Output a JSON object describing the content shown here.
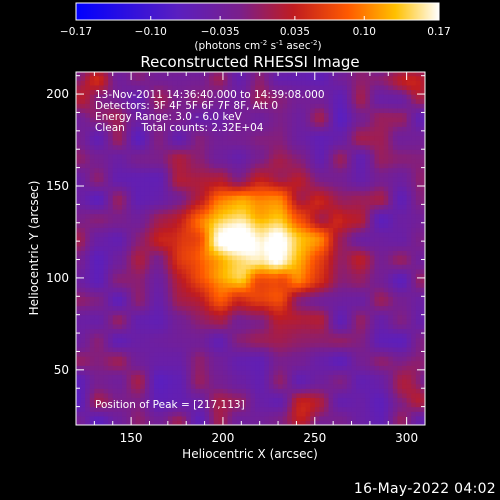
{
  "chart_data": {
    "type": "heatmap",
    "title": "Reconstructed RHESSI Image",
    "xlabel": "Heliocentric X (arcsec)",
    "ylabel": "Heliocentric Y (arcsec)",
    "xlim": [
      120,
      310
    ],
    "ylim": [
      20,
      212
    ],
    "x_ticks": [
      150,
      200,
      250,
      300
    ],
    "y_ticks": [
      50,
      100,
      150,
      200
    ],
    "colorbar": {
      "label_main": "(photons cm",
      "label_exp1": "-2",
      "label_mid": " s",
      "label_exp2": "-1",
      "label_tail": " asec",
      "label_exp3": "-2",
      "label_end": ")",
      "tick_labels": [
        "−0.17",
        "−0.10",
        "−0.035",
        "0.035",
        "0.10",
        "0.17"
      ],
      "min": -0.17,
      "max": 0.17
    },
    "annotations": [
      "13-Nov-2011 14:36:40.000 to 14:39:08.000",
      "Detectors: 3F 4F 5F 6F 7F 8F, Att 0",
      "Energy Range: 3.0 - 6.0 keV",
      "Clean     Total counts: 2.32E+04"
    ],
    "peak_label": "Position of Peak = [217,113]",
    "peak": [
      217,
      113
    ],
    "colormap": [
      "#0000ff",
      "#4b1aa8",
      "#7c1f9a",
      "#b8283c",
      "#ff6a00",
      "#ffc000",
      "#ffffff"
    ]
  },
  "footer_date": "16-May-2022 04:02"
}
